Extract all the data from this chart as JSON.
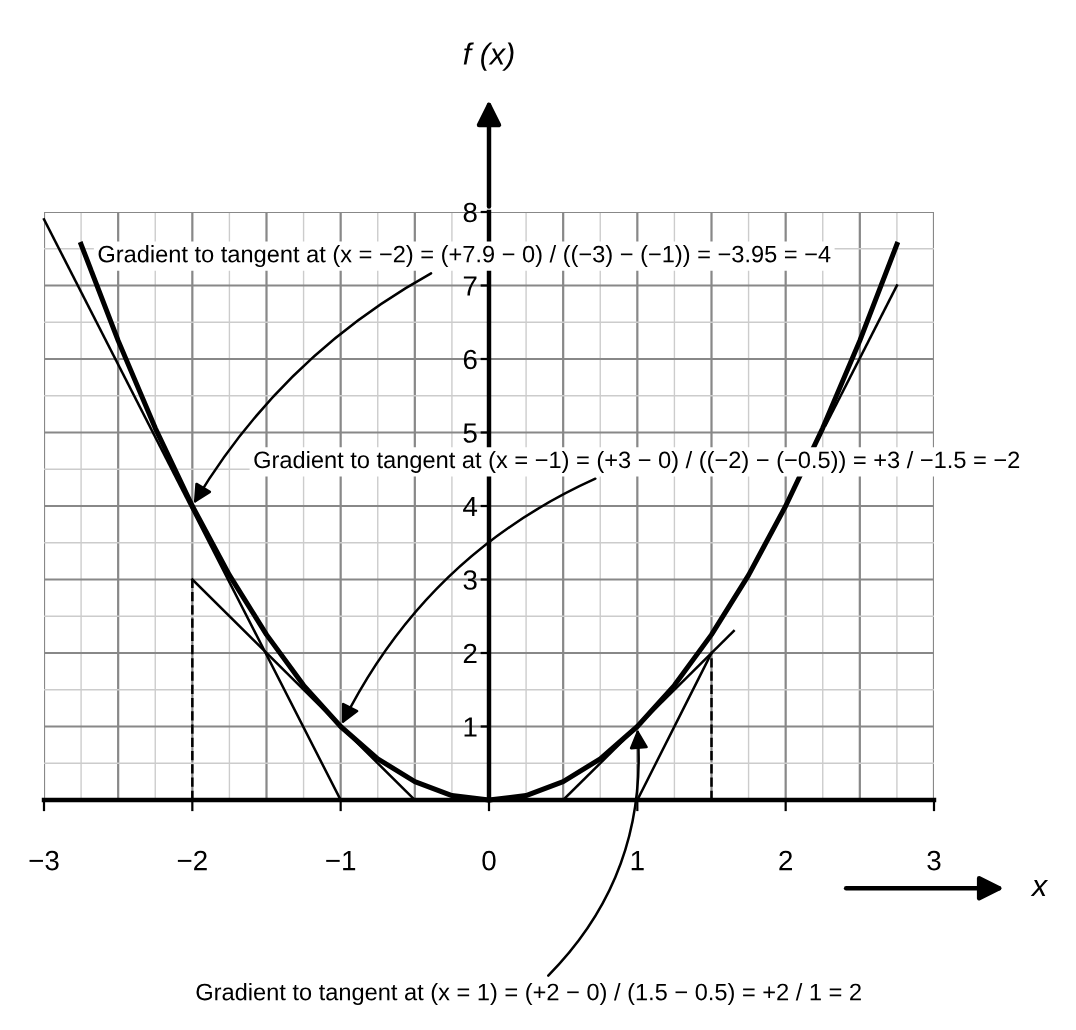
{
  "chart_data": {
    "type": "line",
    "xlabel": "x",
    "ylabel": "f (x)",
    "xlim": [
      -3,
      3
    ],
    "ylim": [
      0,
      8
    ],
    "xticks": [
      {
        "value": -3,
        "label": "−3"
      },
      {
        "value": -2,
        "label": "−2"
      },
      {
        "value": -1,
        "label": "−1"
      },
      0,
      1,
      2,
      3
    ],
    "yticks": [
      1,
      2,
      3,
      4,
      5,
      6,
      7,
      8
    ],
    "grid": true,
    "marker": "none",
    "series": [
      {
        "color": "#000000",
        "line_style": "solid",
        "x": [
          -2.75,
          -2.5,
          -2.25,
          -2,
          -1.75,
          -1.5,
          -1.25,
          -1,
          -0.75,
          -0.5,
          -0.25,
          0,
          0.25,
          0.5,
          0.75,
          1,
          1.25,
          1.5,
          1.75,
          2,
          2.25,
          2.5,
          2.75
        ],
        "values": [
          7.56,
          6.25,
          5.06,
          4,
          3.06,
          2.25,
          1.56,
          1,
          0.56,
          0.25,
          0.06,
          0,
          0.06,
          0.25,
          0.56,
          1,
          1.56,
          2.25,
          3.06,
          4,
          5.06,
          6.25,
          7.56
        ]
      },
      {
        "color": "#000000",
        "line_style": "solid",
        "x": [
          -3,
          -1
        ],
        "values": [
          7.9,
          0
        ]
      },
      {
        "color": "#000000",
        "line_style": "solid",
        "x": [
          -2,
          -0.5
        ],
        "values": [
          3,
          0
        ]
      },
      {
        "color": "#000000",
        "line_style": "solid",
        "x": [
          0.5,
          1.65
        ],
        "values": [
          0,
          2.3
        ]
      },
      {
        "color": "#000000",
        "line_style": "solid",
        "x": [
          1,
          1.5
        ],
        "values": [
          0,
          2
        ]
      },
      {
        "color": "#000000",
        "line_style": "solid",
        "x": [
          2.27,
          2.75
        ],
        "values": [
          5.1,
          7.0
        ]
      },
      {
        "color": "#000000",
        "line_style": "dashed",
        "x": [
          -2,
          -2
        ],
        "values": [
          0,
          3
        ]
      },
      {
        "color": "#000000",
        "line_style": "dashed",
        "x": [
          1.5,
          1.5
        ],
        "values": [
          0,
          2
        ]
      }
    ],
    "annotations": [
      {
        "text": "Gradient to tangent at (x = −2) = (+7.9 − 0) / ((−3) − (−1)) = −3.95 = −4",
        "x": -2,
        "y": 4
      },
      {
        "text": "Gradient to tangent at (x = −1) = (+3 − 0) / ((−2) − (−0.5)) = +3 / −1.5 = −2",
        "x": -1,
        "y": 1
      },
      {
        "text": "Gradient to tangent at (x = 1) = (+2 − 0) / (1.5 − 0.5) = +2 / 1 = 2",
        "x": 1,
        "y": 1
      }
    ]
  }
}
